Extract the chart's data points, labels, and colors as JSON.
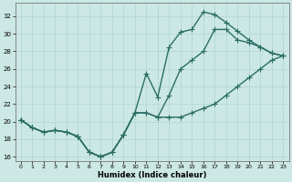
{
  "xlabel": "Humidex (Indice chaleur)",
  "bg_color": "#cce8e5",
  "grid_color": "#aed4d0",
  "line_color": "#2a6e65",
  "markersize": 2.5,
  "linewidth": 1.0,
  "xlim": [
    -0.5,
    23.5
  ],
  "ylim": [
    15.5,
    33.5
  ],
  "xticks": [
    0,
    1,
    2,
    3,
    4,
    5,
    6,
    7,
    8,
    9,
    10,
    11,
    12,
    13,
    14,
    15,
    16,
    17,
    18,
    19,
    20,
    21,
    22,
    23
  ],
  "yticks": [
    16,
    18,
    20,
    22,
    24,
    26,
    28,
    30,
    32
  ],
  "curve1_x": [
    0,
    1,
    2,
    3,
    4,
    5,
    6,
    7,
    8,
    9,
    10,
    11,
    12,
    13,
    14,
    15,
    16,
    17,
    18,
    19,
    20,
    21,
    22,
    23
  ],
  "curve1_y": [
    20.2,
    19.3,
    18.8,
    19.0,
    18.8,
    18.3,
    16.5,
    16.0,
    16.5,
    18.5,
    21.0,
    25.5,
    22.8,
    28.5,
    30.2,
    30.5,
    32.5,
    32.2,
    31.3,
    30.3,
    29.3,
    28.5,
    27.8,
    27.5
  ],
  "curve2_x": [
    0,
    1,
    2,
    3,
    4,
    5,
    6,
    7,
    8,
    9,
    10,
    11,
    12,
    13,
    14,
    15,
    16,
    17,
    18,
    19,
    20,
    21,
    22,
    23
  ],
  "curve2_y": [
    20.2,
    19.3,
    18.8,
    19.0,
    18.8,
    18.3,
    16.5,
    16.0,
    16.5,
    18.5,
    21.0,
    21.0,
    20.5,
    23.0,
    26.0,
    27.0,
    28.0,
    30.5,
    30.5,
    29.3,
    29.0,
    28.5,
    27.8,
    27.5
  ],
  "curve3_x": [
    0,
    1,
    2,
    3,
    4,
    5,
    6,
    7,
    8,
    9,
    10,
    11,
    12,
    13,
    14,
    15,
    16,
    17,
    18,
    19,
    20,
    21,
    22,
    23
  ],
  "curve3_y": [
    20.2,
    19.3,
    18.8,
    19.0,
    18.8,
    18.3,
    16.5,
    16.0,
    16.5,
    18.5,
    21.0,
    21.0,
    20.5,
    20.5,
    20.5,
    21.0,
    21.5,
    22.0,
    23.0,
    24.0,
    25.0,
    26.0,
    27.0,
    27.5
  ]
}
